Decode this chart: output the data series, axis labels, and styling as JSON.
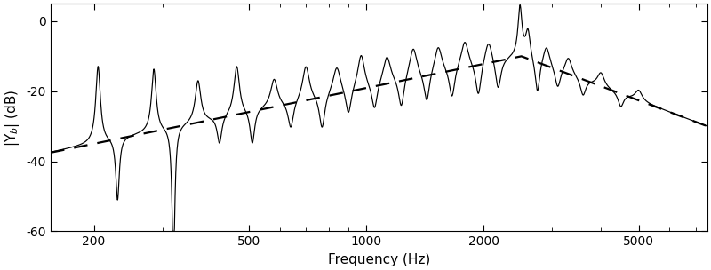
{
  "title": "",
  "xlabel": "Frequency (Hz)",
  "ylabel": "|Y$_b$| (dB)",
  "xlim": [
    155,
    7500
  ],
  "ylim": [
    -60,
    5
  ],
  "yticks": [
    0,
    -20,
    -40,
    -60
  ],
  "xticks": [
    200,
    500,
    1000,
    2000,
    5000
  ],
  "xticklabels": [
    "200",
    "500",
    "1000",
    "2000",
    "5000"
  ],
  "figsize": [
    8.0,
    3.04
  ],
  "dpi": 100,
  "background_color": "#ffffff",
  "line_color": "#000000",
  "dashed_color": "#000000"
}
